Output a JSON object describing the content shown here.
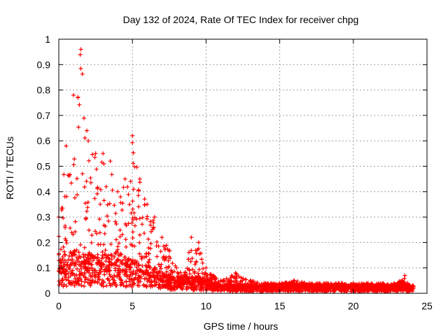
{
  "chart_data": {
    "type": "scatter",
    "title": "Day 132 of 2024, Rate Of TEC Index for receiver chpg",
    "xlabel": "GPS time / hours",
    "ylabel": "ROTI / TECUs",
    "xlim": [
      0,
      25
    ],
    "ylim": [
      0,
      1
    ],
    "x_ticks": [
      "0",
      "5",
      "10",
      "15",
      "20",
      "25"
    ],
    "y_ticks": [
      "0",
      "0.1",
      "0.2",
      "0.3",
      "0.4",
      "0.5",
      "0.6",
      "0.7",
      "0.8",
      "0.9",
      "1"
    ],
    "grid": true,
    "marker": "plus",
    "color": "#ff0000",
    "envelope_hours": [
      0,
      0.5,
      1,
      1.5,
      2,
      2.5,
      3,
      3.5,
      4,
      4.5,
      5,
      5.5,
      6,
      6.5,
      7,
      7.5,
      8,
      8.5,
      9,
      9.5,
      10,
      10.5,
      11,
      12,
      13,
      14,
      15,
      16,
      17,
      18,
      19,
      20,
      21,
      22,
      23,
      23.5,
      24
    ],
    "envelope_roti": [
      0.3,
      0.58,
      0.78,
      0.96,
      0.6,
      0.55,
      0.55,
      0.52,
      0.4,
      0.45,
      0.62,
      0.45,
      0.35,
      0.3,
      0.22,
      0.17,
      0.1,
      0.07,
      0.22,
      0.2,
      0.1,
      0.07,
      0.05,
      0.08,
      0.05,
      0.04,
      0.04,
      0.05,
      0.04,
      0.04,
      0.04,
      0.04,
      0.04,
      0.04,
      0.04,
      0.07,
      0.03
    ],
    "median_hours": [
      0,
      1,
      2,
      3,
      4,
      5,
      6,
      7,
      8,
      9,
      10,
      11,
      12,
      13,
      14,
      15,
      16,
      17,
      18,
      19,
      20,
      21,
      22,
      23,
      24
    ],
    "median_roti": [
      0.08,
      0.1,
      0.09,
      0.09,
      0.09,
      0.08,
      0.07,
      0.05,
      0.04,
      0.04,
      0.035,
      0.02,
      0.02,
      0.02,
      0.02,
      0.02,
      0.025,
      0.02,
      0.02,
      0.02,
      0.02,
      0.02,
      0.02,
      0.02,
      0.02
    ]
  }
}
